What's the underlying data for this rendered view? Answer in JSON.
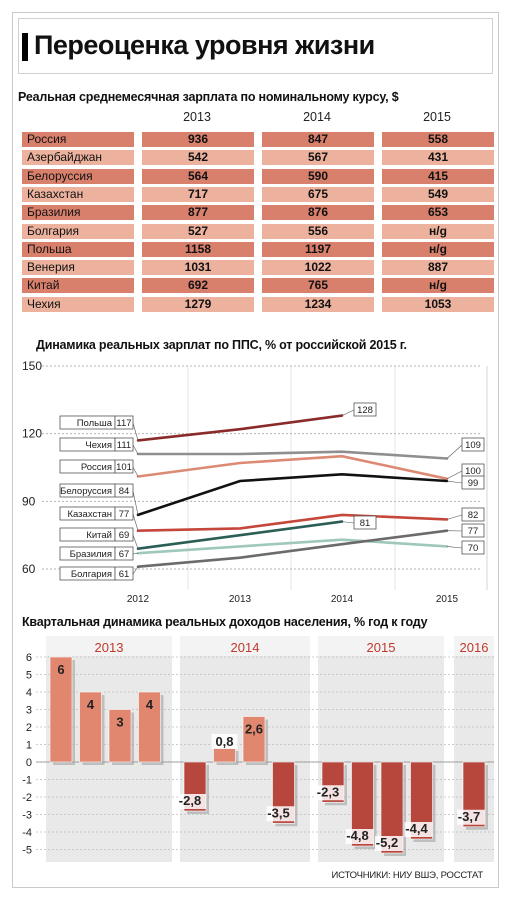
{
  "title": "Переоценка уровня жизни",
  "colors": {
    "dark_row": "#d9806d",
    "light_row": "#ecb29e",
    "bar": "#e2876f",
    "bar_neg": "#b7463c",
    "panel": "#e9e9e9"
  },
  "table": {
    "title": "Реальная среднемесячная зарплата по номинальному курсу, $",
    "years": [
      "2013",
      "2014",
      "2015"
    ],
    "rows": [
      {
        "name": "Россия",
        "values": [
          "936",
          "847",
          "558"
        ]
      },
      {
        "name": "Азербайджан",
        "values": [
          "542",
          "567",
          "431"
        ]
      },
      {
        "name": "Белоруссия",
        "values": [
          "564",
          "590",
          "415"
        ]
      },
      {
        "name": "Казахстан",
        "values": [
          "717",
          "675",
          "549"
        ]
      },
      {
        "name": "Бразилия",
        "values": [
          "877",
          "876",
          "653"
        ]
      },
      {
        "name": "Болгария",
        "values": [
          "527",
          "556",
          "н/g"
        ]
      },
      {
        "name": "Польша",
        "values": [
          "1158",
          "1197",
          "н/g"
        ]
      },
      {
        "name": "Венерия",
        "values": [
          "1031",
          "1022",
          "887"
        ]
      },
      {
        "name": "Китай",
        "values": [
          "692",
          "765",
          "н/g"
        ]
      },
      {
        "name": "Чехия",
        "values": [
          "1279",
          "1234",
          "1053"
        ]
      }
    ]
  },
  "chart_data": [
    {
      "type": "line",
      "title": "Динамика реальных зарплат по ППС, % от российской 2015 г.",
      "x": [
        "2012",
        "2013",
        "2014",
        "2015"
      ],
      "yticks": [
        "150",
        "120",
        "90",
        "60"
      ],
      "ylim": [
        60,
        150
      ],
      "series": [
        {
          "name": "Польша",
          "color": "#8b2a2a",
          "start_label": "117",
          "end_label": "128",
          "values": [
            117,
            122,
            128,
            null
          ]
        },
        {
          "name": "Чехия",
          "color": "#8f8f8f",
          "start_label": "111",
          "end_label": "109",
          "values": [
            111,
            111,
            112,
            109
          ]
        },
        {
          "name": "Россия",
          "color": "#dc8a74",
          "start_label": "101",
          "end_label": "100",
          "values": [
            101,
            107,
            110,
            100
          ]
        },
        {
          "name": "Белоруссия",
          "color": "#111111",
          "start_label": "84",
          "end_label": "99",
          "values": [
            84,
            99,
            102,
            99
          ]
        },
        {
          "name": "Казахстан",
          "color": "#c5473b",
          "start_label": "77",
          "end_label": "82",
          "values": [
            77,
            78,
            84,
            82
          ]
        },
        {
          "name": "Китай",
          "color": "#2a5e56",
          "start_label": "69",
          "end_label": "81",
          "values": [
            69,
            75,
            81,
            null
          ]
        },
        {
          "name": "Бразилия",
          "color": "#9fc7bb",
          "start_label": "67",
          "end_label": "70",
          "values": [
            67,
            70,
            73,
            70
          ]
        },
        {
          "name": "Болгария",
          "color": "#6b6b6b",
          "start_label": "61",
          "end_label": "77",
          "values": [
            61,
            65,
            71,
            77
          ]
        }
      ]
    },
    {
      "type": "bar",
      "title": "Квартальная динамика реальных доходов населения, % год к году",
      "ylim": [
        -5,
        6
      ],
      "yticks": [
        "6",
        "5",
        "4",
        "3",
        "2",
        "1",
        "0",
        "-1",
        "-2",
        "-3",
        "-4",
        "-5"
      ],
      "groups": [
        {
          "year": "2013",
          "values": [
            6,
            4,
            3,
            4
          ],
          "labels": [
            "6",
            "4",
            "3",
            "4"
          ]
        },
        {
          "year": "2014",
          "values": [
            -2.8,
            0.8,
            2.6,
            -3.5
          ],
          "labels": [
            "-2,8",
            "0,8",
            "2,6",
            "-3,5"
          ]
        },
        {
          "year": "2015",
          "values": [
            -2.3,
            -4.8,
            -5.2,
            -4.4
          ],
          "labels": [
            "-2,3",
            "-4,8",
            "-5,2",
            "-4,4"
          ]
        },
        {
          "year": "2016",
          "values": [
            -3.7
          ],
          "labels": [
            "-3,7"
          ]
        }
      ]
    }
  ],
  "source": "ИСТОЧНИКИ: НИУ ВШЭ, РОССТАТ"
}
